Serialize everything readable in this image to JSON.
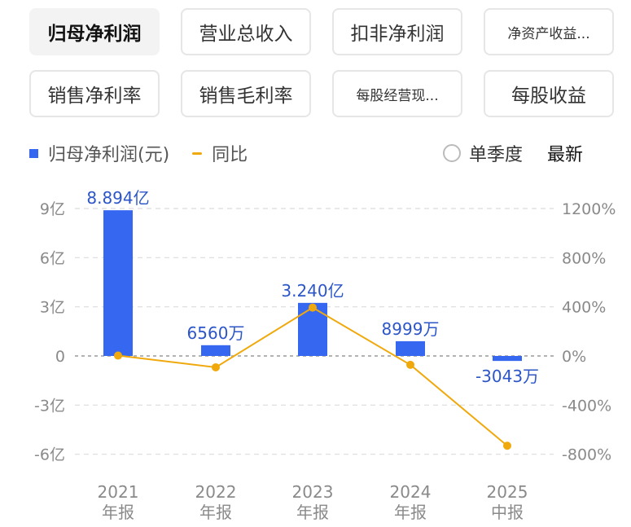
{
  "tabs": [
    {
      "label": "归母净利润",
      "active": true
    },
    {
      "label": "营业总收入",
      "active": false
    },
    {
      "label": "扣非净利润",
      "active": false
    },
    {
      "label": "净资产收益...",
      "active": false,
      "small": true
    },
    {
      "label": "销售净利率",
      "active": false
    },
    {
      "label": "销售毛利率",
      "active": false
    },
    {
      "label": "每股经营现...",
      "active": false,
      "small": true
    },
    {
      "label": "每股收益",
      "active": false
    }
  ],
  "legend": {
    "bar_label": "归母净利润(元)",
    "line_label": "同比",
    "season_label": "单季度",
    "latest_label": "最新"
  },
  "colors": {
    "bar": "#3567f0",
    "line": "#f0a90d",
    "label": "#2c56c8"
  },
  "chart_data": {
    "type": "bar",
    "categories": [
      [
        "2021",
        "年报"
      ],
      [
        "2022",
        "年报"
      ],
      [
        "2023",
        "年报"
      ],
      [
        "2024",
        "年报"
      ],
      [
        "2025",
        "中报"
      ]
    ],
    "series": [
      {
        "name": "归母净利润(元)",
        "type": "bar",
        "axis": "left",
        "values": [
          889400000,
          65600000,
          324000000,
          89990000,
          -30430000
        ],
        "labels": [
          "8.894亿",
          "6560万",
          "3.240亿",
          "8999万",
          "-3043万"
        ]
      },
      {
        "name": "同比",
        "type": "line",
        "axis": "right",
        "values": [
          3,
          -92.6,
          393.9,
          -72.2,
          -731
        ]
      }
    ],
    "left_axis": {
      "ticks": [
        900000000,
        600000000,
        300000000,
        0,
        -300000000,
        -600000000
      ],
      "tick_labels": [
        "9亿",
        "6亿",
        "3亿",
        "0",
        "-3亿",
        "-6亿"
      ],
      "range": [
        -600000000,
        900000000
      ]
    },
    "right_axis": {
      "ticks": [
        1200,
        800,
        400,
        0,
        -400,
        -800
      ],
      "tick_labels": [
        "1200%",
        "800%",
        "400%",
        "0%",
        "-400%",
        "-800%"
      ],
      "range": [
        -800,
        1200
      ]
    },
    "grid": true,
    "legend_position": "top-left"
  }
}
